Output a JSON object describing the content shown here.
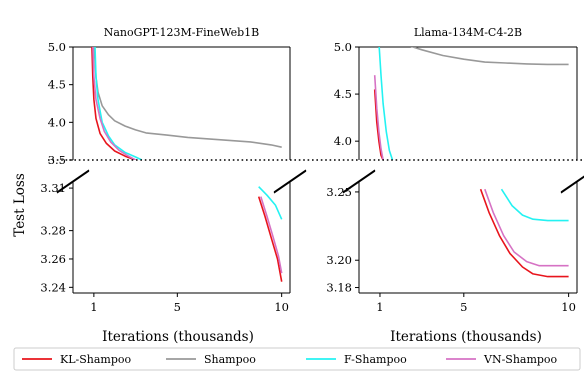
{
  "figure": {
    "ylabel": "Test Loss",
    "xlabel": "Iterations (thousands)",
    "legend": {
      "placement": "bottom",
      "entries": [
        {
          "name": "KL-Shampoo",
          "color": "#e8141c"
        },
        {
          "name": "Shampoo",
          "color": "#999999"
        },
        {
          "name": "F-Shampoo",
          "color": "#24f2f2"
        },
        {
          "name": "VN-Shampoo",
          "color": "#d672c4"
        }
      ]
    }
  },
  "chart_data": [
    {
      "type": "line",
      "title": "NanoGPT-123M-FineWeb1B",
      "xlabel": "Iterations (thousands)",
      "ylabel": "Test Loss",
      "xlim": [
        0,
        10.4
      ],
      "xticks": [
        1,
        5,
        10
      ],
      "broken_y_axis": true,
      "upper": {
        "ylim": [
          3.5,
          5.0
        ],
        "yticks": [
          3.5,
          4.0,
          4.5,
          5.0
        ],
        "tick_labels": [
          "3.5",
          "4.0",
          "4.5",
          "5.0"
        ]
      },
      "lower": {
        "ylim": [
          3.236,
          3.315
        ],
        "yticks": [
          3.24,
          3.26,
          3.28,
          3.31
        ],
        "tick_labels": [
          "3.24",
          "3.26",
          "3.28",
          "3.31"
        ]
      },
      "series": [
        {
          "name": "KL-Shampoo",
          "color": "#e8141c",
          "upper": [
            [
              0.9,
              5.05
            ],
            [
              0.95,
              4.6
            ],
            [
              1.0,
              4.3
            ],
            [
              1.1,
              4.05
            ],
            [
              1.3,
              3.85
            ],
            [
              1.6,
              3.72
            ],
            [
              2.0,
              3.62
            ],
            [
              2.5,
              3.55
            ],
            [
              3.0,
              3.5
            ]
          ],
          "lower": [
            [
              8.9,
              3.304
            ],
            [
              9.2,
              3.29
            ],
            [
              9.5,
              3.275
            ],
            [
              9.8,
              3.26
            ],
            [
              10.0,
              3.244
            ]
          ]
        },
        {
          "name": "Shampoo",
          "color": "#999999",
          "upper": [
            [
              1.0,
              5.05
            ],
            [
              1.1,
              4.6
            ],
            [
              1.2,
              4.4
            ],
            [
              1.4,
              4.22
            ],
            [
              1.7,
              4.1
            ],
            [
              2.0,
              4.02
            ],
            [
              2.5,
              3.95
            ],
            [
              3.0,
              3.9
            ],
            [
              3.5,
              3.86
            ],
            [
              4.5,
              3.83
            ],
            [
              5.5,
              3.8
            ],
            [
              7.0,
              3.77
            ],
            [
              8.5,
              3.74
            ],
            [
              9.5,
              3.7
            ],
            [
              10.0,
              3.67
            ]
          ],
          "lower": []
        },
        {
          "name": "F-Shampoo",
          "color": "#24f2f2",
          "upper": [
            [
              1.05,
              5.05
            ],
            [
              1.1,
              4.6
            ],
            [
              1.2,
              4.3
            ],
            [
              1.4,
              4.0
            ],
            [
              1.7,
              3.82
            ],
            [
              2.0,
              3.7
            ],
            [
              2.5,
              3.6
            ],
            [
              3.0,
              3.54
            ],
            [
              3.3,
              3.5
            ]
          ],
          "lower": [
            [
              8.9,
              3.311
            ],
            [
              9.3,
              3.305
            ],
            [
              9.7,
              3.298
            ],
            [
              10.0,
              3.288
            ]
          ]
        },
        {
          "name": "VN-Shampoo",
          "color": "#d672c4",
          "upper": [
            [
              0.95,
              5.05
            ],
            [
              1.0,
              4.6
            ],
            [
              1.1,
              4.3
            ],
            [
              1.3,
              4.05
            ],
            [
              1.5,
              3.88
            ],
            [
              1.8,
              3.74
            ],
            [
              2.2,
              3.63
            ],
            [
              2.6,
              3.56
            ],
            [
              3.0,
              3.5
            ]
          ],
          "lower": [
            [
              9.0,
              3.304
            ],
            [
              9.3,
              3.29
            ],
            [
              9.6,
              3.275
            ],
            [
              9.85,
              3.262
            ],
            [
              10.0,
              3.25
            ]
          ]
        }
      ]
    },
    {
      "type": "line",
      "title": "Llama-134M-C4-2B",
      "xlabel": "Iterations (thousands)",
      "ylabel": "",
      "xlim": [
        0,
        10.4
      ],
      "xticks": [
        1,
        5,
        10
      ],
      "broken_y_axis": true,
      "upper": {
        "ylim": [
          3.8,
          5.0
        ],
        "yticks": [
          4.0,
          4.5,
          5.0
        ],
        "tick_labels": [
          "4.0",
          "4.5",
          "5.0"
        ]
      },
      "lower": {
        "ylim": [
          3.176,
          3.258
        ],
        "yticks": [
          3.18,
          3.2,
          3.25
        ],
        "tick_labels": [
          "3.18",
          "3.20",
          "3.25"
        ]
      },
      "series": [
        {
          "name": "KL-Shampoo",
          "color": "#e8141c",
          "upper": [
            [
              0.75,
              4.55
            ],
            [
              0.85,
              4.2
            ],
            [
              0.95,
              4.0
            ],
            [
              1.05,
              3.85
            ],
            [
              1.15,
              3.8
            ]
          ],
          "lower": [
            [
              5.8,
              3.252
            ],
            [
              6.2,
              3.235
            ],
            [
              6.7,
              3.218
            ],
            [
              7.2,
              3.205
            ],
            [
              7.8,
              3.195
            ],
            [
              8.3,
              3.19
            ],
            [
              9.0,
              3.188
            ],
            [
              10.0,
              3.188
            ]
          ]
        },
        {
          "name": "Shampoo",
          "color": "#999999",
          "upper": [
            [
              2.0,
              5.04
            ],
            [
              3.0,
              4.97
            ],
            [
              4.0,
              4.91
            ],
            [
              5.0,
              4.87
            ],
            [
              6.0,
              4.84
            ],
            [
              7.0,
              4.83
            ],
            [
              8.0,
              4.82
            ],
            [
              9.0,
              4.815
            ],
            [
              10.0,
              4.815
            ]
          ],
          "lower": []
        },
        {
          "name": "F-Shampoo",
          "color": "#24f2f2",
          "upper": [
            [
              0.95,
              5.05
            ],
            [
              1.05,
              4.7
            ],
            [
              1.15,
              4.4
            ],
            [
              1.3,
              4.1
            ],
            [
              1.45,
              3.9
            ],
            [
              1.6,
              3.8
            ]
          ],
          "lower": [
            [
              6.8,
              3.252
            ],
            [
              7.3,
              3.24
            ],
            [
              7.8,
              3.233
            ],
            [
              8.3,
              3.23
            ],
            [
              9.0,
              3.229
            ],
            [
              10.0,
              3.229
            ]
          ]
        },
        {
          "name": "VN-Shampoo",
          "color": "#d672c4",
          "upper": [
            [
              0.75,
              4.7
            ],
            [
              0.85,
              4.35
            ],
            [
              0.95,
              4.1
            ],
            [
              1.05,
              3.92
            ],
            [
              1.15,
              3.8
            ]
          ],
          "lower": [
            [
              6.0,
              3.252
            ],
            [
              6.4,
              3.235
            ],
            [
              6.9,
              3.218
            ],
            [
              7.4,
              3.206
            ],
            [
              8.0,
              3.199
            ],
            [
              8.6,
              3.196
            ],
            [
              9.3,
              3.196
            ],
            [
              10.0,
              3.196
            ]
          ]
        }
      ]
    }
  ]
}
